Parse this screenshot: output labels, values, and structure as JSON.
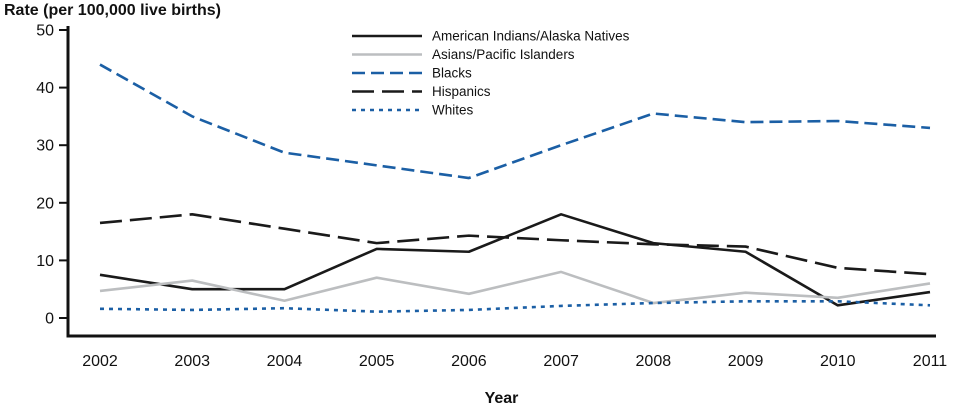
{
  "title": "Rate (per 100,000 live births)",
  "x_axis_title": "Year",
  "chart_data": {
    "type": "line",
    "title": "Rate (per 100,000 live births)",
    "xlabel": "Year",
    "ylabel": "Rate (per 100,000 live births)",
    "x": [
      2002,
      2003,
      2004,
      2005,
      2006,
      2007,
      2008,
      2009,
      2010,
      2011
    ],
    "ylim": [
      0,
      50
    ],
    "yticks": [
      0,
      10,
      20,
      30,
      40,
      50
    ],
    "grid": false,
    "legend_position": "top-center",
    "series": [
      {
        "name": "American Indians/Alaska Natives",
        "color": "#1a1a1a",
        "dash": "",
        "values": [
          7.5,
          5,
          5,
          12,
          11.5,
          18,
          13,
          11.5,
          2.2,
          4.5
        ]
      },
      {
        "name": "Asians/Pacific Islanders",
        "color": "#bcbec0",
        "dash": "",
        "values": [
          4.7,
          6.5,
          3,
          7,
          4.2,
          8,
          2.6,
          4.4,
          3.5,
          6
        ]
      },
      {
        "name": "Blacks",
        "color": "#1b5fa5",
        "dash": "13,6",
        "values": [
          44,
          35,
          28.7,
          26.5,
          24.3,
          30,
          35.5,
          34,
          34.2,
          33
        ]
      },
      {
        "name": "Hispanics",
        "color": "#1a1a1a",
        "dash": "22,8",
        "values": [
          16.5,
          18,
          15.5,
          13,
          14.3,
          13.5,
          12.8,
          12.4,
          8.7,
          7.6
        ]
      },
      {
        "name": "Whites",
        "color": "#1b5fa5",
        "dash": "4,5",
        "values": [
          1.6,
          1.4,
          1.7,
          1.1,
          1.4,
          2.1,
          2.6,
          2.9,
          2.9,
          2.2
        ]
      }
    ]
  }
}
